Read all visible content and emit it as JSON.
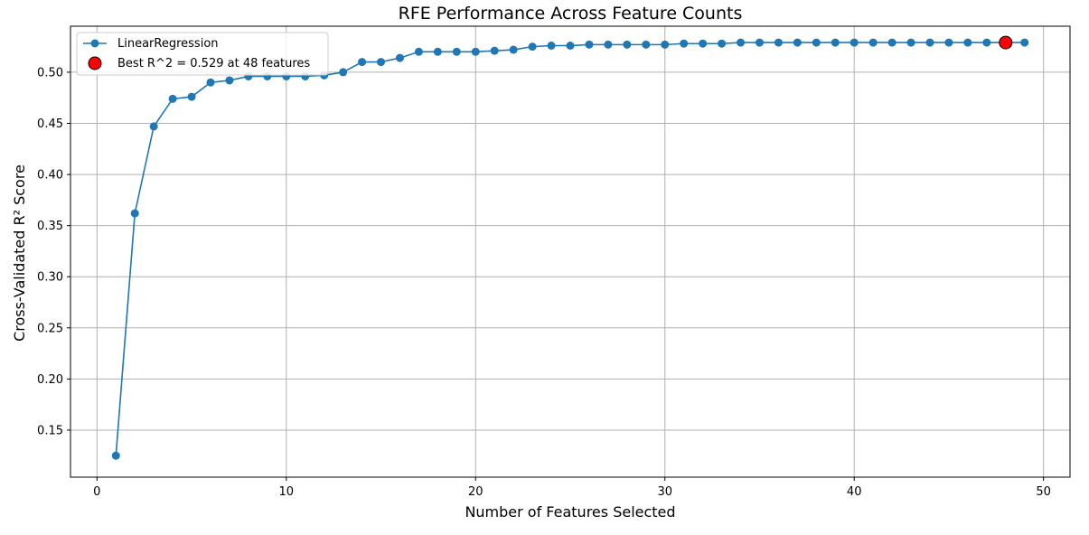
{
  "chart_data": {
    "type": "line",
    "title": "RFE Performance Across Feature Counts",
    "xlabel": "Number of Features Selected",
    "ylabel": "Cross-Validated R² Score",
    "xlim": [
      -1.4,
      51.4
    ],
    "ylim": [
      0.104,
      0.545
    ],
    "x_ticks": [
      0,
      10,
      20,
      30,
      40,
      50
    ],
    "x_tick_labels": [
      "0",
      "10",
      "20",
      "30",
      "40",
      "50"
    ],
    "y_ticks": [
      0.15,
      0.2,
      0.25,
      0.3,
      0.35,
      0.4,
      0.45,
      0.5
    ],
    "y_tick_labels": [
      "0.15",
      "0.20",
      "0.25",
      "0.30",
      "0.35",
      "0.40",
      "0.45",
      "0.50"
    ],
    "grid": true,
    "legend_position": "top-left",
    "series": [
      {
        "name": "LinearRegression",
        "color": "#1f77b4",
        "marker": "circle",
        "x": [
          1,
          2,
          3,
          4,
          5,
          6,
          7,
          8,
          9,
          10,
          11,
          12,
          13,
          14,
          15,
          16,
          17,
          18,
          19,
          20,
          21,
          22,
          23,
          24,
          25,
          26,
          27,
          28,
          29,
          30,
          31,
          32,
          33,
          34,
          35,
          36,
          37,
          38,
          39,
          40,
          41,
          42,
          43,
          44,
          45,
          46,
          47,
          48,
          49
        ],
        "values": [
          0.125,
          0.362,
          0.447,
          0.474,
          0.476,
          0.49,
          0.492,
          0.496,
          0.496,
          0.496,
          0.496,
          0.497,
          0.5,
          0.51,
          0.51,
          0.514,
          0.52,
          0.52,
          0.52,
          0.52,
          0.521,
          0.522,
          0.525,
          0.526,
          0.526,
          0.527,
          0.527,
          0.527,
          0.527,
          0.527,
          0.528,
          0.528,
          0.528,
          0.529,
          0.529,
          0.529,
          0.529,
          0.529,
          0.529,
          0.529,
          0.529,
          0.529,
          0.529,
          0.529,
          0.529,
          0.529,
          0.529,
          0.529,
          0.529
        ]
      }
    ],
    "highlight": {
      "label": "Best R^2 = 0.529 at 48 features",
      "x": 48,
      "y": 0.529,
      "color": "#ff0000",
      "edge_color": "#000000"
    }
  }
}
